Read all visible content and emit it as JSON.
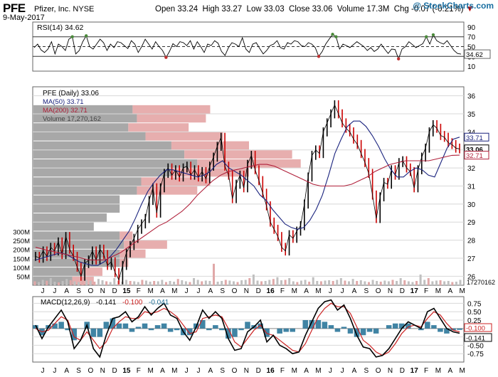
{
  "header": {
    "ticker": "PFE",
    "company": "Pfizer, Inc. NYSE",
    "date": "9-May-2017",
    "open_label": "Open",
    "open": "33.24",
    "high_label": "High",
    "high": "33.27",
    "low_label": "Low",
    "low": "33.03",
    "close_label": "Close",
    "close": "33.06",
    "volume_label": "Volume",
    "volume": "17.3M",
    "chg_label": "Chg",
    "chg": "-0.07 (-0.21%)",
    "watermark": "@ StockCharts.com"
  },
  "colors": {
    "price": "#000000",
    "up_candle": "#000000",
    "down_candle": "#cc0000",
    "ma50": "#1a237e",
    "ma200": "#b0203a",
    "volume": "#c0c0c0",
    "vbp_up": "#9e9e9e",
    "vbp_down": "#e3a0a0",
    "macd": "#000000",
    "signal": "#cc2222",
    "histogram": "#1e6e94",
    "grid": "#d8d8d8"
  },
  "chart_data": [
    {
      "type": "line",
      "title": "RSI(14) 34.62",
      "last_value_label": "34.62",
      "ylim": [
        0,
        100
      ],
      "yticks": [
        10,
        30,
        50,
        70,
        90
      ],
      "reference_lines": [
        30,
        50,
        70
      ],
      "series": [
        {
          "name": "RSI(14)",
          "values": [
            48,
            55,
            43,
            38,
            45,
            60,
            35,
            55,
            50,
            42,
            65,
            70,
            35,
            42,
            60,
            72,
            50,
            45,
            55,
            65,
            58,
            42,
            55,
            48,
            60,
            58,
            52,
            46,
            62,
            55,
            38,
            50,
            65,
            55,
            45,
            60,
            50,
            42,
            28,
            40,
            56,
            50,
            60,
            58,
            52,
            62,
            45,
            60,
            50,
            38,
            55,
            52,
            62,
            57,
            40,
            32,
            48,
            58,
            55,
            50,
            68,
            45,
            38,
            55,
            58,
            46,
            35,
            42,
            52,
            55,
            62,
            48,
            45,
            58,
            55,
            62,
            60,
            52,
            50,
            58,
            55,
            48,
            30,
            40,
            55,
            65,
            75,
            70,
            45,
            55,
            52,
            48,
            54,
            60,
            55,
            50,
            42,
            48,
            40,
            45,
            55,
            45,
            36,
            45,
            44,
            25,
            45,
            50,
            60,
            54,
            48,
            52,
            56,
            70,
            55,
            74,
            62,
            58,
            55,
            62,
            52,
            42,
            36,
            34.62
          ]
        }
      ]
    },
    {
      "type": "line",
      "title": "PFE (Daily) 33.06",
      "ylim": [
        25.5,
        36.5
      ],
      "yticks": [
        26,
        27,
        28,
        29,
        30,
        31,
        32,
        33,
        34,
        35,
        36
      ],
      "x_tick_labels": [
        "J",
        "J",
        "A",
        "S",
        "O",
        "N",
        "D",
        "15",
        "F",
        "M",
        "A",
        "M",
        "J",
        "J",
        "A",
        "S",
        "O",
        "N",
        "D",
        "16",
        "F",
        "M",
        "A",
        "M",
        "J",
        "J",
        "A",
        "S",
        "O",
        "N",
        "D",
        "17",
        "F",
        "M",
        "A",
        "M"
      ],
      "legend": [
        "PFE (Daily) 33.06",
        "MA(50) 33.71",
        "MA(200) 32.71",
        "Volume 17,270,162"
      ],
      "last_price_labels": [
        "33.71",
        "33.06",
        "32.71"
      ],
      "series": [
        {
          "name": "PFE (Daily)",
          "values": [
            27.1,
            27.0,
            27.4,
            27.1,
            27.6,
            27.4,
            27.9,
            27.2,
            28.2,
            27.5,
            27.1,
            26.5,
            26.0,
            26.7,
            26.9,
            27.4,
            26.9,
            27.5,
            27.2,
            26.6,
            26.8,
            26.2,
            25.8,
            26.6,
            27.3,
            27.7,
            28.1,
            28.6,
            28.9,
            29.2,
            30.2,
            30.9,
            29.5,
            30.9,
            31.7,
            32.0,
            31.6,
            31.9,
            31.5,
            32.0,
            32.1,
            31.6,
            31.9,
            31.5,
            31.8,
            31.4,
            32.1,
            32.6,
            33.2,
            33.7,
            32.1,
            31.6,
            30.3,
            31.1,
            31.6,
            30.9,
            32.2,
            32.7,
            31.9,
            31.3,
            30.6,
            29.9,
            29.0,
            28.6,
            28.2,
            27.6,
            27.4,
            28.3,
            28.1,
            28.5,
            28.8,
            30.0,
            31.5,
            32.7,
            33.0,
            32.8,
            34.0,
            34.5,
            35.0,
            35.5,
            35.0,
            34.5,
            34.2,
            34.0,
            33.6,
            33.3,
            32.8,
            32.3,
            31.7,
            30.5,
            29.2,
            30.4,
            31.2,
            31.1,
            31.9,
            31.6,
            32.3,
            32.4,
            32.0,
            31.8,
            30.9,
            31.9,
            32.6,
            33.1,
            34.0,
            34.4,
            34.2,
            33.8,
            33.7,
            33.4,
            33.3,
            33.1,
            33.06
          ]
        },
        {
          "name": "MA(50)",
          "values": [
            26.9,
            27.0,
            27.1,
            27.2,
            27.3,
            27.2,
            27.0,
            26.8,
            26.7,
            26.6,
            26.6,
            26.8,
            27.1,
            27.5,
            28.0,
            28.5,
            29.2,
            30.0,
            30.7,
            31.2,
            31.6,
            31.9,
            31.9,
            31.8,
            31.7,
            31.6,
            31.5,
            31.6,
            31.8,
            32.2,
            32.4,
            32.0,
            31.8,
            31.6,
            31.3,
            31.0,
            30.5,
            30.2,
            29.7,
            29.3,
            28.9,
            28.7,
            28.6,
            28.7,
            29.1,
            29.7,
            30.5,
            31.6,
            32.8,
            33.6,
            34.3,
            34.6,
            34.6,
            34.3,
            33.8,
            33.2,
            32.5,
            31.9,
            31.5,
            31.5,
            31.8,
            32.0,
            31.9,
            31.6,
            31.5,
            32.3,
            33.1,
            33.6,
            33.71
          ]
        },
        {
          "name": "MA(200)",
          "values": [
            27.6,
            27.5,
            27.4,
            27.3,
            27.2,
            27.1,
            27.0,
            26.9,
            26.9,
            26.9,
            27.1,
            27.3,
            27.6,
            27.9,
            28.2,
            28.5,
            28.8,
            29.0,
            29.3,
            29.6,
            30.0,
            30.5,
            30.9,
            31.3,
            31.6,
            31.8,
            31.9,
            32.0,
            32.1,
            32.2,
            32.2,
            32.1,
            31.9,
            31.7,
            31.5,
            31.3,
            31.1,
            31.0,
            31.0,
            31.0,
            31.0,
            31.1,
            31.3,
            31.5,
            31.8,
            32.0,
            32.2,
            32.3,
            32.4,
            32.4,
            32.4,
            32.4,
            32.5,
            32.6,
            32.7,
            32.71
          ]
        }
      ]
    },
    {
      "type": "bar",
      "title": "Volume",
      "yticks_labels": [
        "50M",
        "100M",
        "150M",
        "200M",
        "250M",
        "300M"
      ],
      "yticks": [
        50,
        100,
        150,
        200,
        250,
        300
      ],
      "last_value_label": "17270162",
      "values": [
        22,
        18,
        30,
        25,
        40,
        20,
        16,
        24,
        35,
        28,
        22,
        18,
        45,
        30,
        25,
        20,
        35,
        28,
        22,
        18,
        40,
        25,
        20,
        30,
        24,
        22,
        18,
        30,
        26,
        20,
        24,
        22,
        30,
        18,
        24,
        20,
        35,
        28,
        22,
        18,
        40,
        30,
        22,
        26,
        24,
        120,
        20,
        24,
        30,
        26,
        22,
        18,
        28,
        30,
        40,
        60,
        26,
        22,
        24,
        30,
        35,
        45,
        28,
        30,
        40,
        22,
        18,
        26,
        30,
        20,
        45,
        24,
        22,
        26,
        28,
        24,
        30,
        40,
        26,
        22,
        35,
        24,
        28,
        22,
        18,
        30,
        24,
        20,
        26,
        22,
        30,
        24,
        40,
        28,
        22,
        18,
        24,
        60,
        30,
        40,
        22,
        26,
        28,
        22,
        24,
        18,
        20,
        30
      ]
    },
    {
      "type": "bar",
      "title": "Volume by Price",
      "price_levels": [
        25.75,
        26.25,
        26.75,
        27.25,
        27.75,
        28.25,
        28.75,
        29.25,
        29.75,
        30.25,
        30.75,
        31.25,
        31.75,
        32.25,
        32.75,
        33.25,
        33.75,
        34.25,
        34.75,
        35.25
      ],
      "up_volume": [
        0.09,
        0.12,
        0.2,
        0.2,
        0.21,
        0.2,
        0.14,
        0.17,
        0.2,
        0.2,
        0.24,
        0.25,
        0.32,
        0.38,
        0.35,
        0.32,
        0.26,
        0.22,
        0.24,
        0.23
      ],
      "down_volume": [
        0.05,
        0.04,
        0.02,
        0.06,
        0.1,
        0.03,
        0.0,
        0.0,
        0.0,
        0.0,
        0.14,
        0.16,
        0.18,
        0.24,
        0.25,
        0.18,
        0.18,
        0.14,
        0.16,
        0.18
      ]
    },
    {
      "type": "line",
      "title": "MACD(12,26,9) -0.141, -0.100, -0.041",
      "legend_values": [
        "-0.141",
        "-0.100",
        "-0.041"
      ],
      "ylim": [
        -1.0,
        0.95
      ],
      "yticks": [
        -0.75,
        -0.5,
        -0.25,
        0.25,
        0.5,
        0.75
      ],
      "yticks_labels": [
        "-0.75",
        "-0.50",
        "-0.25",
        "0.25",
        "0.50",
        "0.75"
      ],
      "last_value_labels": [
        "-0.100",
        "-0.141"
      ],
      "series": [
        {
          "name": "MACD",
          "values": [
            0.1,
            -0.3,
            0.05,
            0.3,
            0.55,
            0.2,
            -0.6,
            -0.35,
            0.1,
            -0.6,
            -0.85,
            -0.2,
            0.3,
            0.35,
            0.5,
            0.2,
            0.35,
            0.65,
            0.4,
            0.6,
            0.75,
            0.4,
            0.3,
            -0.1,
            -0.35,
            0.05,
            0.55,
            0.3,
            0.5,
            0.3,
            -0.3,
            -0.65,
            -0.6,
            -0.1,
            0.05,
            0.25,
            -0.4,
            -0.2,
            -0.5,
            -0.6,
            -0.75,
            -0.7,
            -0.2,
            0.2,
            0.6,
            0.8,
            0.85,
            0.55,
            0.7,
            0.3,
            -0.2,
            -0.55,
            -0.6,
            -0.85,
            -0.8,
            -0.6,
            -0.3,
            0.0,
            0.2,
            0.1,
            0.0,
            0.5,
            0.6,
            0.3,
            0.0,
            -0.1,
            -0.141
          ]
        },
        {
          "name": "Signal",
          "values": [
            0.0,
            -0.1,
            -0.05,
            0.15,
            0.35,
            0.25,
            -0.25,
            -0.35,
            -0.1,
            -0.35,
            -0.6,
            -0.4,
            0.0,
            0.2,
            0.35,
            0.3,
            0.3,
            0.5,
            0.45,
            0.5,
            0.6,
            0.5,
            0.35,
            0.1,
            -0.15,
            -0.1,
            0.3,
            0.35,
            0.4,
            0.35,
            0.0,
            -0.4,
            -0.55,
            -0.3,
            -0.05,
            0.1,
            -0.15,
            -0.2,
            -0.35,
            -0.5,
            -0.65,
            -0.7,
            -0.45,
            -0.05,
            0.35,
            0.6,
            0.75,
            0.65,
            0.65,
            0.45,
            0.05,
            -0.35,
            -0.5,
            -0.7,
            -0.8,
            -0.7,
            -0.45,
            -0.15,
            0.05,
            0.1,
            0.05,
            0.3,
            0.5,
            0.4,
            0.15,
            -0.05,
            -0.1
          ]
        },
        {
          "name": "Histogram",
          "values": [
            0.1,
            -0.2,
            0.1,
            0.15,
            0.2,
            -0.05,
            -0.35,
            0.0,
            0.2,
            -0.25,
            -0.25,
            0.2,
            0.3,
            0.15,
            0.15,
            -0.1,
            0.05,
            0.15,
            -0.05,
            0.1,
            0.15,
            -0.1,
            -0.05,
            -0.2,
            -0.2,
            0.15,
            0.25,
            -0.05,
            0.1,
            -0.05,
            -0.3,
            -0.25,
            -0.05,
            0.2,
            0.1,
            0.15,
            -0.25,
            0.0,
            -0.15,
            -0.1,
            -0.1,
            0.0,
            0.25,
            0.25,
            0.25,
            0.2,
            0.1,
            -0.1,
            0.05,
            -0.15,
            -0.25,
            -0.2,
            -0.1,
            -0.15,
            0.0,
            0.1,
            0.15,
            0.15,
            0.15,
            0.0,
            -0.05,
            0.2,
            0.1,
            -0.1,
            -0.15,
            -0.05,
            -0.041
          ]
        }
      ]
    }
  ]
}
